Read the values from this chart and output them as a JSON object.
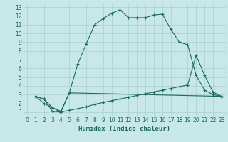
{
  "xlabel": "Humidex (Indice chaleur)",
  "bg_color": "#c8e8e8",
  "line_color": "#1a6b5a",
  "grid_color": "#a8d0d0",
  "xlim": [
    -0.5,
    23.5
  ],
  "ylim": [
    0.5,
    13.5
  ],
  "xticks": [
    0,
    1,
    2,
    3,
    4,
    5,
    6,
    7,
    8,
    9,
    10,
    11,
    12,
    13,
    14,
    15,
    16,
    17,
    18,
    19,
    20,
    21,
    22,
    23
  ],
  "yticks": [
    1,
    2,
    3,
    4,
    5,
    6,
    7,
    8,
    9,
    10,
    11,
    12,
    13
  ],
  "line1_x": [
    1,
    2,
    3,
    4,
    5,
    6,
    7,
    8,
    9,
    10,
    11,
    12,
    13,
    14,
    15,
    16,
    17,
    18,
    19,
    20,
    21,
    22,
    23
  ],
  "line1_y": [
    2.8,
    2.5,
    1.5,
    1.1,
    3.2,
    6.5,
    8.8,
    11.0,
    11.7,
    12.3,
    12.7,
    11.8,
    11.8,
    11.8,
    12.1,
    12.2,
    10.5,
    9.0,
    8.7,
    5.2,
    3.5,
    3.0,
    2.8
  ],
  "line2_x": [
    1,
    2,
    3,
    4,
    5,
    23
  ],
  "line2_y": [
    2.8,
    2.5,
    1.1,
    1.0,
    3.2,
    2.8
  ],
  "line3_x": [
    1,
    2,
    3,
    4,
    5,
    6,
    7,
    8,
    9,
    10,
    11,
    12,
    13,
    14,
    15,
    16,
    17,
    18,
    19,
    20,
    21,
    22,
    23
  ],
  "line3_y": [
    2.8,
    2.0,
    1.5,
    1.0,
    1.2,
    1.4,
    1.6,
    1.9,
    2.1,
    2.3,
    2.5,
    2.7,
    2.9,
    3.1,
    3.3,
    3.5,
    3.7,
    3.9,
    4.1,
    7.5,
    5.2,
    3.3,
    2.8
  ]
}
